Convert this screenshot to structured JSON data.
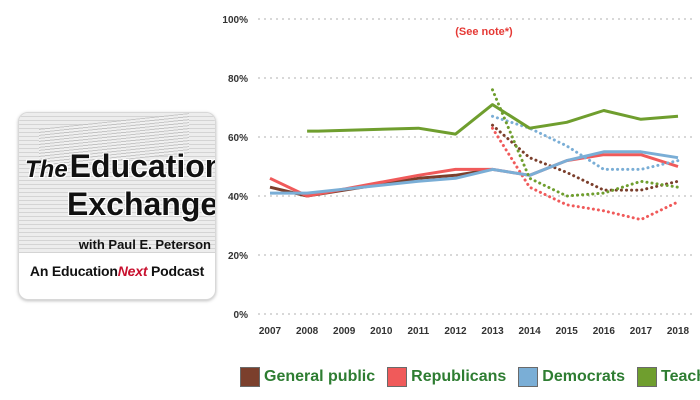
{
  "podcast": {
    "title_the": "The",
    "title_word1": "Education",
    "title_word2": "Exchange",
    "byline": "with Paul E. Peterson",
    "footer_prefix": "An Education",
    "footer_next": "Next",
    "footer_suffix": " Podcast",
    "accent": "#c8102e"
  },
  "chart_data": {
    "type": "line",
    "title": "",
    "xlabel": "",
    "ylabel": "",
    "note": "(See note*)",
    "note_color": "#e53935",
    "x": [
      2007,
      2008,
      2009,
      2010,
      2011,
      2012,
      2013,
      2014,
      2015,
      2016,
      2017,
      2018
    ],
    "ylim": [
      0,
      100
    ],
    "yticks": [
      0,
      20,
      40,
      60,
      80,
      100
    ],
    "ytick_labels": [
      "0%",
      "20%",
      "40%",
      "60%",
      "80%",
      "100%"
    ],
    "grid": true,
    "legend_position": "bottom",
    "series": [
      {
        "name": "General public",
        "color": "#7b3f2c",
        "style": "solid",
        "points": [
          [
            2007,
            43
          ],
          [
            2008,
            40
          ],
          [
            2011,
            46
          ],
          [
            2012,
            47
          ],
          [
            2013,
            49
          ]
        ]
      },
      {
        "name": "General public",
        "color": "#7b3f2c",
        "style": "dotted",
        "legend": false,
        "points": [
          [
            2013,
            64
          ],
          [
            2014,
            53
          ],
          [
            2015,
            48
          ],
          [
            2016,
            42
          ],
          [
            2017,
            42
          ],
          [
            2018,
            45
          ]
        ]
      },
      {
        "name": "Republicans",
        "color": "#f05a5a",
        "style": "solid",
        "points": [
          [
            2007,
            46
          ],
          [
            2008,
            40
          ],
          [
            2011,
            47
          ],
          [
            2012,
            49
          ],
          [
            2013,
            49
          ],
          [
            2014,
            47
          ],
          [
            2015,
            52
          ],
          [
            2016,
            54
          ],
          [
            2017,
            54
          ],
          [
            2018,
            50
          ]
        ]
      },
      {
        "name": "Republicans",
        "color": "#f05a5a",
        "style": "dotted",
        "legend": false,
        "points": [
          [
            2013,
            63
          ],
          [
            2014,
            43
          ],
          [
            2015,
            37
          ],
          [
            2016,
            35
          ],
          [
            2017,
            32
          ],
          [
            2018,
            38
          ]
        ]
      },
      {
        "name": "Democrats",
        "color": "#7aaed6",
        "style": "solid",
        "points": [
          [
            2007,
            41
          ],
          [
            2008,
            41
          ],
          [
            2011,
            45
          ],
          [
            2012,
            46
          ],
          [
            2013,
            49
          ],
          [
            2014,
            47
          ],
          [
            2015,
            52
          ],
          [
            2016,
            55
          ],
          [
            2017,
            55
          ],
          [
            2018,
            53
          ]
        ]
      },
      {
        "name": "Democrats",
        "color": "#7aaed6",
        "style": "dotted",
        "legend": false,
        "points": [
          [
            2013,
            67
          ],
          [
            2014,
            63
          ],
          [
            2015,
            57
          ],
          [
            2016,
            49
          ],
          [
            2017,
            49
          ],
          [
            2018,
            52
          ]
        ]
      },
      {
        "name": "Teachers",
        "color": "#6f9e2e",
        "style": "solid",
        "points": [
          [
            2008,
            62
          ],
          [
            2008.3,
            62
          ],
          [
            2011,
            63
          ],
          [
            2012,
            61
          ],
          [
            2013,
            71
          ],
          [
            2014,
            63
          ],
          [
            2015,
            65
          ],
          [
            2016,
            69
          ],
          [
            2017,
            66
          ],
          [
            2018,
            67
          ]
        ]
      },
      {
        "name": "Teachers",
        "color": "#6f9e2e",
        "style": "dotted",
        "legend": false,
        "points": [
          [
            2013,
            76
          ],
          [
            2014,
            46
          ],
          [
            2015,
            40
          ],
          [
            2016,
            41
          ],
          [
            2017,
            45
          ],
          [
            2018,
            43
          ]
        ]
      }
    ],
    "legend": [
      {
        "label": "General public",
        "color": "#7b3f2c"
      },
      {
        "label": "Republicans",
        "color": "#f05a5a"
      },
      {
        "label": "Democrats",
        "color": "#7aaed6"
      },
      {
        "label": "Teachers",
        "color": "#6f9e2e"
      }
    ]
  }
}
